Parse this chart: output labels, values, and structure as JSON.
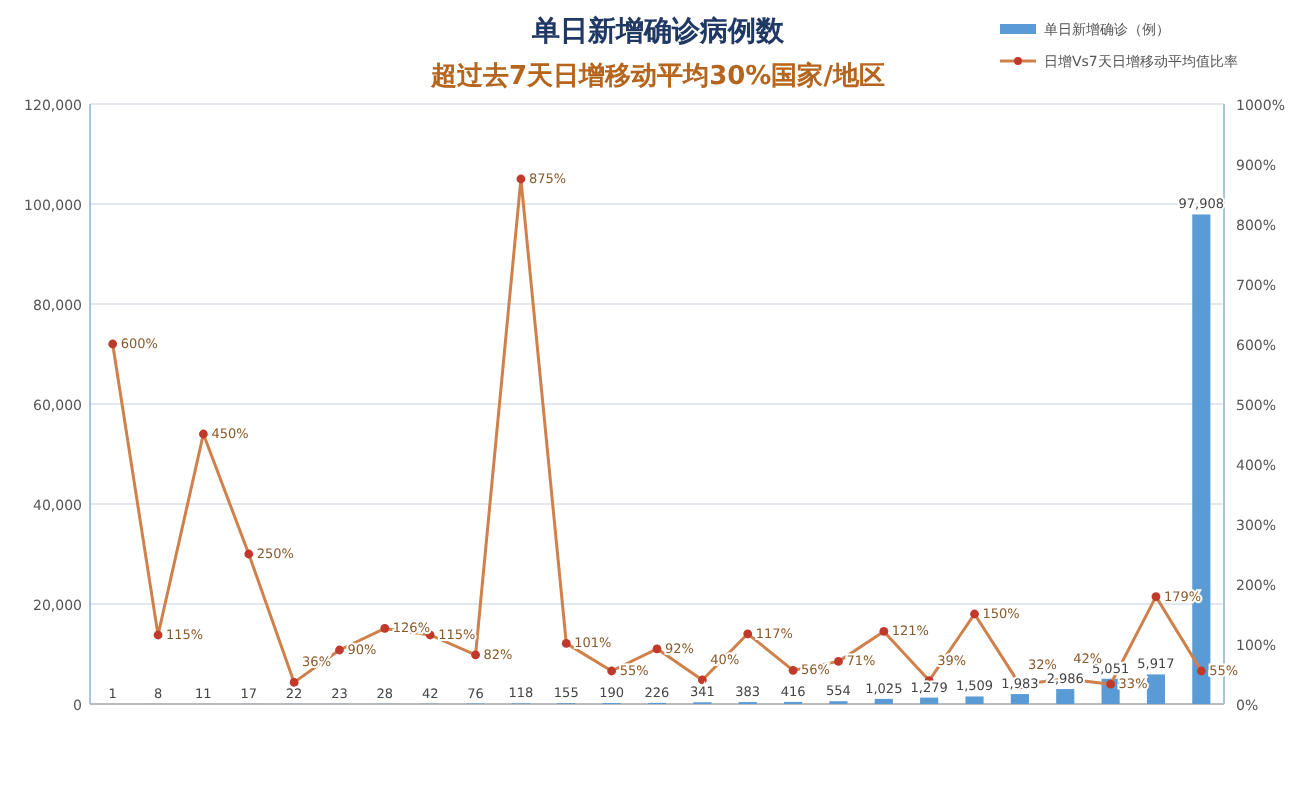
{
  "chart_data": {
    "type": "bar",
    "title": "单日新增确诊病例数",
    "subtitle": "超过去7天日增移动平均30%国家/地区",
    "categories": [
      null,
      null,
      null,
      null,
      null,
      null,
      null,
      null,
      null,
      null,
      null,
      null,
      null,
      null,
      null,
      null,
      null,
      null,
      null,
      null,
      null,
      null,
      null,
      null,
      null
    ],
    "series": [
      {
        "name": "单日新增确诊（例）",
        "color": "#5b9bd5",
        "values": [
          1,
          8,
          11,
          17,
          22,
          23,
          28,
          42,
          76,
          118,
          155,
          190,
          226,
          341,
          383,
          416,
          554,
          1025,
          1279,
          1509,
          1983,
          2986,
          5051,
          5917,
          97908
        ],
        "value_labels": [
          "1",
          "8",
          "11",
          "17",
          "22",
          "23",
          "28",
          "42",
          "76",
          "118",
          "155",
          "190",
          "226",
          "341",
          "383",
          "416",
          "554",
          "1,025",
          "1,279",
          "1,509",
          "1,983",
          "2,986",
          "5,051",
          "5,917",
          "97,908"
        ]
      },
      {
        "name": "日增Vs7天日增移动平均值比率",
        "type": "line",
        "axis": "y2",
        "color": "#d0804a",
        "values": [
          600,
          115,
          450,
          250,
          36,
          90,
          126,
          115,
          82,
          875,
          101,
          55,
          92,
          40,
          117,
          56,
          71,
          121,
          39,
          150,
          32,
          42,
          33,
          179,
          55
        ],
        "value_labels": [
          "600%",
          "115%",
          "450%",
          "250%",
          "36%",
          "90%",
          "126%",
          "115%",
          "82%",
          "875%",
          "101%",
          "55%",
          "92%",
          "40%",
          "117%",
          "56%",
          "71%",
          "121%",
          "39%",
          "150%",
          "32%",
          "42%",
          "33%",
          "179%",
          "55%"
        ]
      }
    ],
    "marker": "circle",
    "legend": "top right",
    "grid": "y",
    "ylim": [
      0,
      120000
    ],
    "yticks": [
      {
        "value": 0,
        "label": "0"
      },
      {
        "value": 20000,
        "label": "20,000"
      },
      {
        "value": 40000,
        "label": "40,000"
      },
      {
        "value": 60000,
        "label": "60,000"
      },
      {
        "value": 80000,
        "label": "80,000"
      },
      {
        "value": 100000,
        "label": "100,000"
      },
      {
        "value": 120000,
        "label": "120,000"
      }
    ],
    "y2lim": [
      0,
      1000
    ],
    "y2ticks": [
      {
        "value": 0,
        "label": "0%"
      },
      {
        "value": 100,
        "label": "100%"
      },
      {
        "value": 200,
        "label": "200%"
      },
      {
        "value": 300,
        "label": "300%"
      },
      {
        "value": 400,
        "label": "400%"
      },
      {
        "value": 500,
        "label": "500%"
      },
      {
        "value": 600,
        "label": "600%"
      },
      {
        "value": 700,
        "label": "700%"
      },
      {
        "value": 800,
        "label": "800%"
      },
      {
        "value": 900,
        "label": "900%"
      },
      {
        "value": 1000,
        "label": "1000%"
      }
    ]
  }
}
